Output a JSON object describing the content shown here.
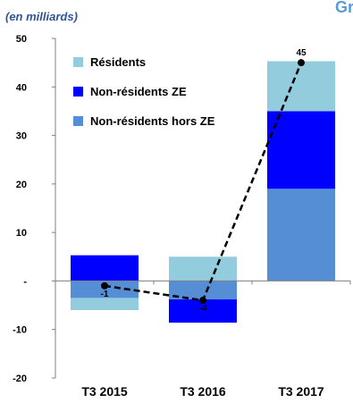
{
  "chart_data": {
    "type": "bar",
    "stacked": true,
    "title_fragment": "Gr",
    "subtitle": "(en milliards)",
    "categories": [
      "T3 2015",
      "T3 2016",
      "T3 2017"
    ],
    "ylim": [
      -20,
      50
    ],
    "yticks": [
      {
        "value": 50,
        "label": "50"
      },
      {
        "value": 40,
        "label": "40"
      },
      {
        "value": 30,
        "label": "30"
      },
      {
        "value": 20,
        "label": "20"
      },
      {
        "value": 10,
        "label": "10"
      },
      {
        "value": 0,
        "label": "-"
      },
      {
        "value": -10,
        "label": "-10"
      },
      {
        "value": -20,
        "label": "-20"
      }
    ],
    "grid": false,
    "legend_position": "top-left",
    "series": [
      {
        "name": "Non-résidents hors ZE",
        "color": "#558ed5",
        "values": [
          -3.5,
          -3.8,
          19
        ]
      },
      {
        "name": "Non-résidents ZE",
        "color": "#0000ff",
        "values": [
          5.3,
          -4.8,
          16
        ]
      },
      {
        "name": "Résidents",
        "color": "#93cddd",
        "values": [
          -2.5,
          5,
          10.3
        ]
      }
    ],
    "total_line": {
      "style": "dashed",
      "color": "#000000",
      "values": [
        -1,
        -4,
        45
      ],
      "labels": [
        "-1",
        "-4",
        "45"
      ]
    }
  }
}
